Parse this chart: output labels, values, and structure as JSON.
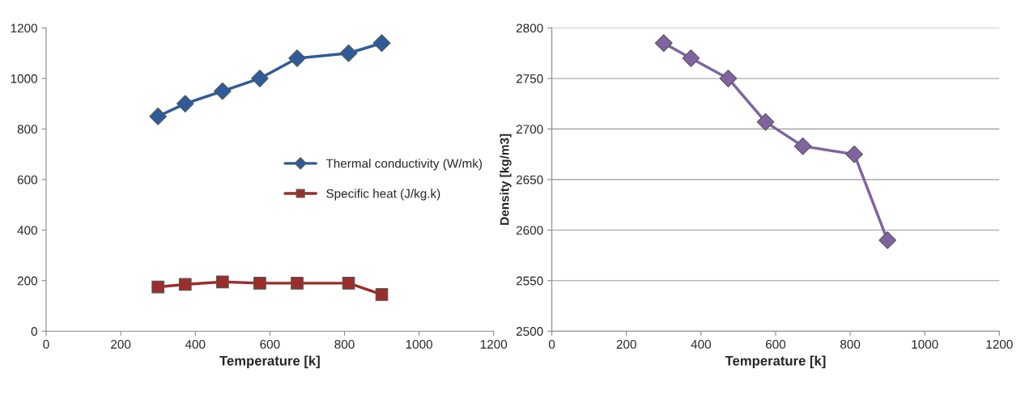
{
  "chart_data": [
    {
      "type": "line",
      "xlabel": "Temperature [k]",
      "xlim": [
        0,
        1200
      ],
      "xticks": [
        0,
        200,
        400,
        600,
        800,
        1000,
        1200
      ],
      "ylim": [
        0,
        1200
      ],
      "yticks": [
        0,
        200,
        400,
        600,
        800,
        1000,
        1200
      ],
      "grid": false,
      "legend": "right",
      "x": [
        300,
        373,
        473,
        573,
        673,
        811,
        900
      ],
      "series": [
        {
          "name": "Thermal conductivity (W/mk)",
          "color": "#2e5c9a",
          "marker": "diamond",
          "values": [
            850,
            900,
            950,
            1000,
            1080,
            1100,
            1140
          ]
        },
        {
          "name": "Specific heat (J/kg.k)",
          "color": "#9b2d2a",
          "marker": "square",
          "values": [
            175,
            185,
            195,
            190,
            190,
            190,
            145
          ]
        }
      ]
    },
    {
      "type": "line",
      "xlabel": "Temperature [k]",
      "ylabel": "Density [kg/m3]",
      "xlim": [
        0,
        1200
      ],
      "xticks": [
        0,
        200,
        400,
        600,
        800,
        1000,
        1200
      ],
      "ylim": [
        2500,
        2800
      ],
      "yticks": [
        2500,
        2550,
        2600,
        2650,
        2700,
        2750,
        2800
      ],
      "grid": "y",
      "legend": false,
      "x": [
        300,
        373,
        473,
        573,
        673,
        811,
        900
      ],
      "series": [
        {
          "color": "#8064a2",
          "marker": "diamond",
          "values": [
            2785,
            2770,
            2750,
            2707,
            2683,
            2675,
            2590
          ]
        }
      ]
    }
  ]
}
